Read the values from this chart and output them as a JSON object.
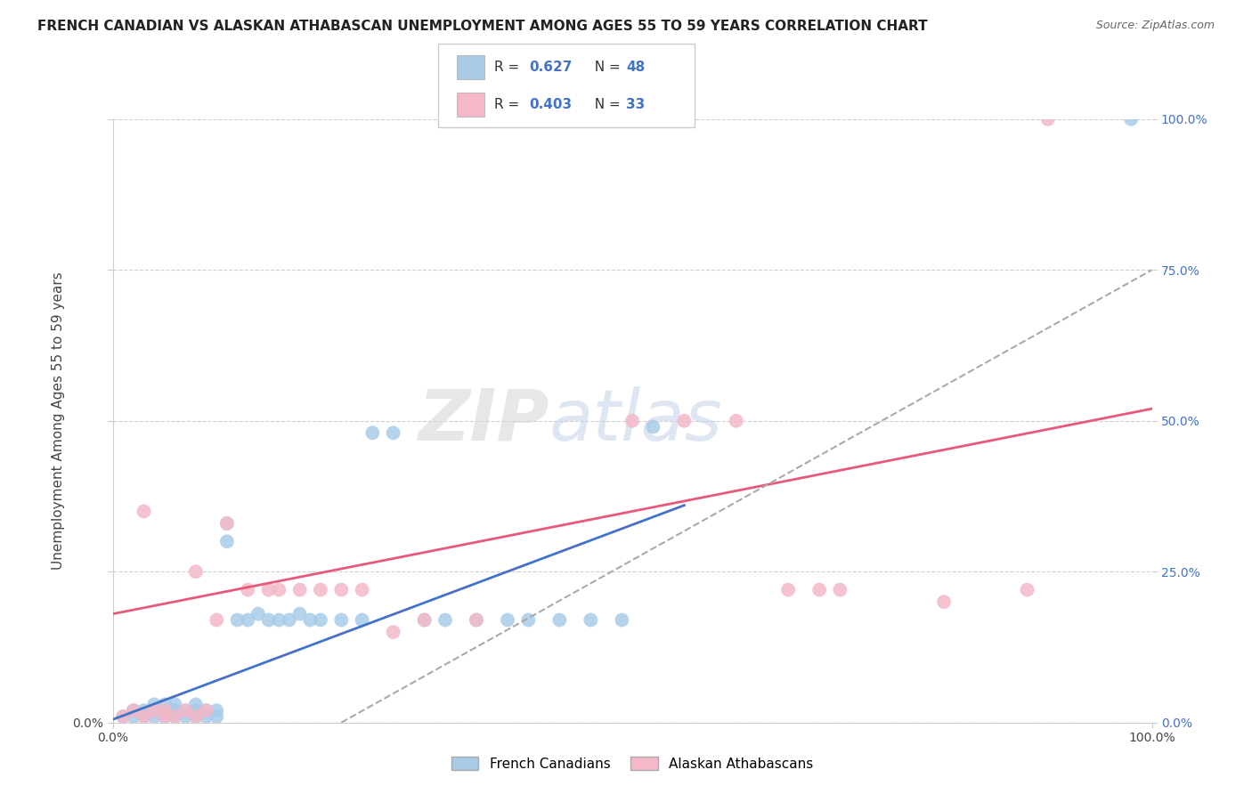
{
  "title": "FRENCH CANADIAN VS ALASKAN ATHABASCAN UNEMPLOYMENT AMONG AGES 55 TO 59 YEARS CORRELATION CHART",
  "source": "Source: ZipAtlas.com",
  "ylabel": "Unemployment Among Ages 55 to 59 years",
  "xlim": [
    0.0,
    1.0
  ],
  "ylim": [
    0.0,
    1.0
  ],
  "ytick_values": [
    0.0,
    0.25,
    0.5,
    0.75,
    1.0
  ],
  "xtick_values": [
    0.0,
    1.0
  ],
  "xtick_labels": [
    "0.0%",
    "100.0%"
  ],
  "ytick_labels_left": [
    "0.0%"
  ],
  "ytick_labels_right": [
    "0.0%",
    "25.0%",
    "50.0%",
    "75.0%",
    "100.0%"
  ],
  "grid_color": "#d0d0d0",
  "background_color": "#ffffff",
  "blue_color": "#a8cce8",
  "pink_color": "#f4b8c8",
  "blue_line_color": "#4472c4",
  "pink_line_color": "#e8587a",
  "dashed_line_color": "#aaaaaa",
  "legend_label_blue": "French Canadians",
  "legend_label_pink": "Alaskan Athabascans",
  "watermark_zip": "ZIP",
  "watermark_atlas": "atlas",
  "blue_scatter_x": [
    0.01,
    0.02,
    0.02,
    0.03,
    0.03,
    0.04,
    0.04,
    0.04,
    0.05,
    0.05,
    0.05,
    0.06,
    0.06,
    0.06,
    0.07,
    0.07,
    0.08,
    0.08,
    0.08,
    0.09,
    0.09,
    0.1,
    0.1,
    0.11,
    0.11,
    0.12,
    0.13,
    0.14,
    0.15,
    0.16,
    0.17,
    0.18,
    0.19,
    0.2,
    0.22,
    0.24,
    0.25,
    0.27,
    0.3,
    0.32,
    0.35,
    0.38,
    0.4,
    0.43,
    0.46,
    0.49,
    0.52,
    0.98
  ],
  "blue_scatter_y": [
    0.01,
    0.01,
    0.02,
    0.01,
    0.02,
    0.01,
    0.02,
    0.03,
    0.01,
    0.02,
    0.03,
    0.01,
    0.02,
    0.03,
    0.01,
    0.02,
    0.01,
    0.02,
    0.03,
    0.01,
    0.02,
    0.01,
    0.02,
    0.3,
    0.33,
    0.17,
    0.17,
    0.18,
    0.17,
    0.17,
    0.17,
    0.18,
    0.17,
    0.17,
    0.17,
    0.17,
    0.48,
    0.48,
    0.17,
    0.17,
    0.17,
    0.17,
    0.17,
    0.17,
    0.17,
    0.17,
    0.49,
    1.0
  ],
  "pink_scatter_x": [
    0.01,
    0.02,
    0.03,
    0.03,
    0.04,
    0.05,
    0.05,
    0.06,
    0.07,
    0.08,
    0.08,
    0.09,
    0.1,
    0.11,
    0.13,
    0.15,
    0.16,
    0.18,
    0.2,
    0.22,
    0.24,
    0.27,
    0.3,
    0.35,
    0.5,
    0.55,
    0.6,
    0.65,
    0.68,
    0.7,
    0.8,
    0.88,
    0.9
  ],
  "pink_scatter_y": [
    0.01,
    0.02,
    0.01,
    0.35,
    0.02,
    0.01,
    0.02,
    0.01,
    0.02,
    0.01,
    0.25,
    0.02,
    0.17,
    0.33,
    0.22,
    0.22,
    0.22,
    0.22,
    0.22,
    0.22,
    0.22,
    0.15,
    0.17,
    0.17,
    0.5,
    0.5,
    0.5,
    0.22,
    0.22,
    0.22,
    0.2,
    0.22,
    1.0
  ],
  "blue_line_x0": 0.0,
  "blue_line_y0": 0.005,
  "blue_line_x1": 0.55,
  "blue_line_y1": 0.36,
  "pink_line_x0": 0.0,
  "pink_line_y0": 0.18,
  "pink_line_x1": 1.0,
  "pink_line_y1": 0.52,
  "dash_line_x0": 0.22,
  "dash_line_y0": 0.0,
  "dash_line_x1": 1.0,
  "dash_line_y1": 0.75,
  "title_fontsize": 11,
  "source_fontsize": 9,
  "axis_label_fontsize": 11,
  "tick_fontsize": 10,
  "legend_fontsize": 12
}
